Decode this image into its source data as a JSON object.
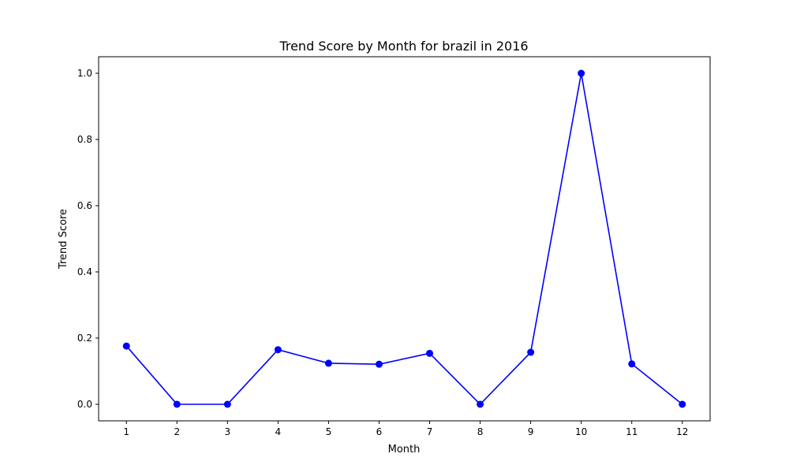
{
  "chart_data": {
    "type": "line",
    "title": "Trend Score by Month for brazil in 2016",
    "xlabel": "Month",
    "ylabel": "Trend Score",
    "x": [
      1,
      2,
      3,
      4,
      5,
      6,
      7,
      8,
      9,
      10,
      11,
      12
    ],
    "xticks": [
      "1",
      "2",
      "3",
      "4",
      "5",
      "6",
      "7",
      "8",
      "9",
      "10",
      "11",
      "12"
    ],
    "yticks": [
      "0.0",
      "0.2",
      "0.4",
      "0.6",
      "0.8",
      "1.0"
    ],
    "xlim": [
      0.45,
      12.55
    ],
    "ylim": [
      -0.05,
      1.05
    ],
    "grid": false,
    "legend": "none",
    "series": [
      {
        "name": "",
        "color": "#0000ff",
        "marker": "circle",
        "values": [
          0.176,
          0.0,
          0.0,
          0.165,
          0.124,
          0.121,
          0.154,
          0.0,
          0.157,
          1.0,
          0.122,
          0.0
        ]
      }
    ]
  }
}
